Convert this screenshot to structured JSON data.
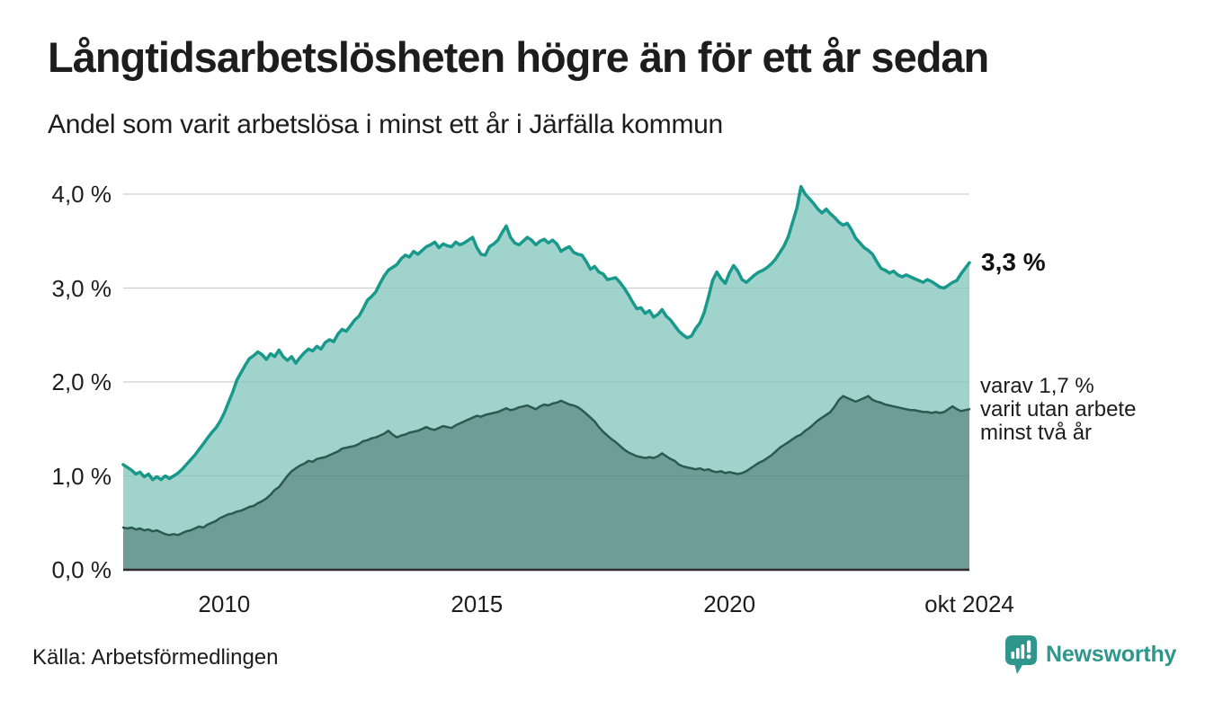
{
  "chart_data": {
    "type": "area",
    "title": "Långtidsarbetslösheten högre än för ett år sedan",
    "subtitle": "Andel som varit arbetslösa i minst ett år i Järfälla kommun",
    "unit": "%",
    "grid": "horizontal",
    "legend_position": "none",
    "x_range_years": [
      2008.0,
      2024.75
    ],
    "ylim": [
      0,
      4.3
    ],
    "y_ticks": [
      {
        "label": "4,0 %",
        "value": 4.0
      },
      {
        "label": "3,0 %",
        "value": 3.0
      },
      {
        "label": "2,0 %",
        "value": 2.0
      },
      {
        "label": "1,0 %",
        "value": 1.0
      },
      {
        "label": "0,0 %",
        "value": 0.0
      }
    ],
    "x_ticks": [
      {
        "label": "2010",
        "year": 2010
      },
      {
        "label": "2015",
        "year": 2015
      },
      {
        "label": "2020",
        "year": 2020
      },
      {
        "label": "okt 2024",
        "year": 2024.75
      }
    ],
    "series": [
      {
        "name": "Andel som varit arbetslösa minst ett år",
        "color": "#18998b",
        "fill": "#9fd3cc",
        "stroke_width": 3.5,
        "start_year": 2008,
        "step_months": 1,
        "values": [
          1.12,
          1.09,
          1.06,
          1.02,
          1.04,
          0.99,
          1.02,
          0.96,
          0.99,
          0.96,
          1.0,
          0.97,
          1.0,
          1.03,
          1.07,
          1.12,
          1.17,
          1.22,
          1.28,
          1.34,
          1.4,
          1.46,
          1.51,
          1.58,
          1.67,
          1.78,
          1.89,
          2.02,
          2.1,
          2.18,
          2.25,
          2.28,
          2.32,
          2.29,
          2.24,
          2.3,
          2.27,
          2.34,
          2.27,
          2.23,
          2.27,
          2.2,
          2.26,
          2.31,
          2.35,
          2.33,
          2.38,
          2.35,
          2.42,
          2.45,
          2.43,
          2.51,
          2.56,
          2.54,
          2.6,
          2.66,
          2.7,
          2.78,
          2.87,
          2.91,
          2.96,
          3.05,
          3.13,
          3.19,
          3.22,
          3.25,
          3.31,
          3.35,
          3.33,
          3.39,
          3.36,
          3.4,
          3.44,
          3.46,
          3.49,
          3.43,
          3.47,
          3.45,
          3.44,
          3.49,
          3.46,
          3.48,
          3.51,
          3.54,
          3.43,
          3.36,
          3.35,
          3.44,
          3.47,
          3.51,
          3.59,
          3.66,
          3.54,
          3.48,
          3.46,
          3.5,
          3.54,
          3.51,
          3.46,
          3.5,
          3.52,
          3.48,
          3.51,
          3.47,
          3.39,
          3.42,
          3.44,
          3.38,
          3.36,
          3.35,
          3.28,
          3.2,
          3.23,
          3.17,
          3.15,
          3.09,
          3.1,
          3.11,
          3.06,
          3.0,
          2.93,
          2.85,
          2.78,
          2.79,
          2.73,
          2.76,
          2.69,
          2.72,
          2.77,
          2.7,
          2.66,
          2.6,
          2.54,
          2.5,
          2.47,
          2.49,
          2.57,
          2.63,
          2.74,
          2.9,
          3.08,
          3.17,
          3.1,
          3.05,
          3.16,
          3.24,
          3.18,
          3.09,
          3.06,
          3.1,
          3.14,
          3.17,
          3.19,
          3.22,
          3.26,
          3.31,
          3.38,
          3.45,
          3.55,
          3.7,
          3.85,
          4.08,
          4.0,
          3.95,
          3.9,
          3.84,
          3.8,
          3.84,
          3.79,
          3.75,
          3.7,
          3.67,
          3.69,
          3.62,
          3.53,
          3.48,
          3.43,
          3.4,
          3.36,
          3.28,
          3.21,
          3.19,
          3.16,
          3.18,
          3.14,
          3.12,
          3.14,
          3.12,
          3.1,
          3.08,
          3.06,
          3.09,
          3.07,
          3.04,
          3.01,
          3.0,
          3.03,
          3.06,
          3.08,
          3.15,
          3.21,
          3.27
        ]
      },
      {
        "name": "varav arbetslösa minst två år",
        "color": "#2b5a52",
        "fill": "#6f9c96",
        "stroke_width": 2.5,
        "start_year": 2008,
        "step_months": 1,
        "values": [
          0.45,
          0.44,
          0.45,
          0.43,
          0.44,
          0.42,
          0.43,
          0.41,
          0.42,
          0.4,
          0.38,
          0.37,
          0.38,
          0.37,
          0.39,
          0.41,
          0.42,
          0.44,
          0.46,
          0.45,
          0.48,
          0.5,
          0.52,
          0.55,
          0.57,
          0.59,
          0.6,
          0.62,
          0.63,
          0.65,
          0.67,
          0.68,
          0.71,
          0.73,
          0.76,
          0.8,
          0.85,
          0.88,
          0.94,
          1.0,
          1.05,
          1.08,
          1.11,
          1.13,
          1.16,
          1.15,
          1.18,
          1.19,
          1.2,
          1.22,
          1.24,
          1.26,
          1.29,
          1.3,
          1.31,
          1.32,
          1.34,
          1.37,
          1.38,
          1.4,
          1.41,
          1.43,
          1.45,
          1.48,
          1.44,
          1.41,
          1.43,
          1.44,
          1.46,
          1.47,
          1.48,
          1.5,
          1.52,
          1.5,
          1.49,
          1.51,
          1.53,
          1.52,
          1.51,
          1.54,
          1.56,
          1.58,
          1.6,
          1.62,
          1.64,
          1.63,
          1.65,
          1.66,
          1.67,
          1.68,
          1.7,
          1.72,
          1.7,
          1.71,
          1.73,
          1.74,
          1.75,
          1.73,
          1.71,
          1.74,
          1.76,
          1.75,
          1.77,
          1.78,
          1.8,
          1.78,
          1.76,
          1.75,
          1.73,
          1.7,
          1.66,
          1.62,
          1.58,
          1.52,
          1.47,
          1.43,
          1.39,
          1.36,
          1.32,
          1.28,
          1.25,
          1.23,
          1.21,
          1.2,
          1.19,
          1.2,
          1.19,
          1.21,
          1.24,
          1.21,
          1.18,
          1.16,
          1.12,
          1.1,
          1.09,
          1.08,
          1.07,
          1.08,
          1.06,
          1.07,
          1.05,
          1.04,
          1.05,
          1.03,
          1.04,
          1.03,
          1.02,
          1.03,
          1.05,
          1.08,
          1.11,
          1.14,
          1.16,
          1.19,
          1.22,
          1.26,
          1.3,
          1.33,
          1.36,
          1.39,
          1.42,
          1.44,
          1.48,
          1.51,
          1.55,
          1.59,
          1.62,
          1.65,
          1.68,
          1.74,
          1.81,
          1.85,
          1.83,
          1.81,
          1.79,
          1.81,
          1.83,
          1.85,
          1.81,
          1.79,
          1.78,
          1.76,
          1.75,
          1.74,
          1.73,
          1.72,
          1.71,
          1.7,
          1.7,
          1.69,
          1.68,
          1.68,
          1.67,
          1.68,
          1.67,
          1.68,
          1.71,
          1.74,
          1.71,
          1.69,
          1.7,
          1.71
        ]
      }
    ],
    "annotations": {
      "latest_value": "3,3 %",
      "secondary": [
        "varav 1,7 %",
        "varit utan arbete",
        "minst två år"
      ]
    }
  },
  "footer": {
    "source": "Källa: Arbetsförmedlingen",
    "brand": "Newsworthy"
  },
  "colors": {
    "text": "#1d1d1d",
    "gridline": "#d9d9d9",
    "axis": "#2d2d2d",
    "series1_line": "#18998b",
    "series1_fill": "#9fd3cc",
    "series2_line": "#2b5a52",
    "series2_fill": "#6f9c96",
    "brand": "#2f968b"
  }
}
